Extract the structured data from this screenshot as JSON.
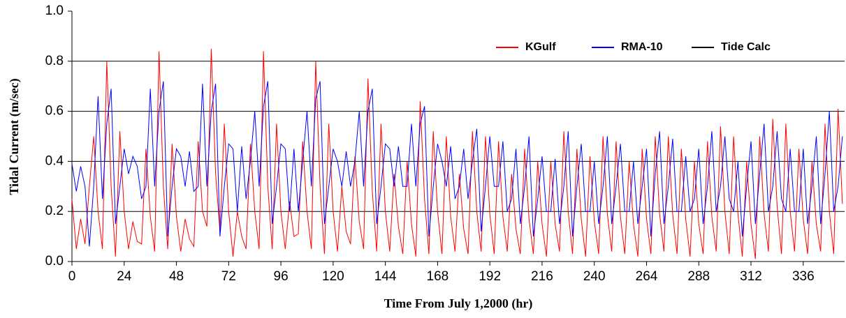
{
  "chart_data": {
    "type": "line",
    "y_label": "Tidal Current (m/sec)",
    "x_label": "Time From July 1,2000 (hr)",
    "xlim": [
      0,
      355
    ],
    "xticks": [
      0,
      24,
      48,
      72,
      96,
      120,
      144,
      168,
      192,
      216,
      240,
      264,
      288,
      312,
      336
    ],
    "ylim": [
      0,
      1
    ],
    "yticks": [
      {
        "value": 0,
        "label": "0.0"
      },
      {
        "value": 0.2,
        "label": "0.2"
      },
      {
        "value": 0.4,
        "label": "0.4"
      },
      {
        "value": 0.6,
        "label": "0.6"
      },
      {
        "value": 0.8,
        "label": "0.8"
      },
      {
        "value": 1,
        "label": "1.0"
      }
    ],
    "grid": true,
    "legend": "upper right",
    "x": [
      0,
      2,
      4,
      6,
      8,
      10,
      12,
      14,
      16,
      18,
      20,
      22,
      24,
      26,
      28,
      30,
      32,
      34,
      36,
      38,
      40,
      42,
      44,
      46,
      48,
      50,
      52,
      54,
      56,
      58,
      60,
      62,
      64,
      66,
      68,
      70,
      72,
      74,
      76,
      78,
      80,
      82,
      84,
      86,
      88,
      90,
      92,
      94,
      96,
      98,
      100,
      102,
      104,
      106,
      108,
      110,
      112,
      114,
      116,
      118,
      120,
      122,
      124,
      126,
      128,
      130,
      132,
      134,
      136,
      138,
      140,
      142,
      144,
      146,
      148,
      150,
      152,
      154,
      156,
      158,
      160,
      162,
      164,
      166,
      168,
      170,
      172,
      174,
      176,
      178,
      180,
      182,
      184,
      186,
      188,
      190,
      192,
      194,
      196,
      198,
      200,
      202,
      204,
      206,
      208,
      210,
      212,
      214,
      216,
      218,
      220,
      222,
      224,
      226,
      228,
      230,
      232,
      234,
      236,
      238,
      240,
      242,
      244,
      246,
      248,
      250,
      252,
      254,
      256,
      258,
      260,
      262,
      264,
      266,
      268,
      270,
      272,
      274,
      276,
      278,
      280,
      282,
      284,
      286,
      288,
      290,
      292,
      294,
      296,
      298,
      300,
      302,
      304,
      306,
      308,
      310,
      312,
      314,
      316,
      318,
      320,
      322,
      324,
      326,
      328,
      330,
      332,
      334,
      336,
      338,
      340,
      342,
      344,
      346,
      348,
      350,
      352,
      354
    ],
    "series": [
      {
        "name": "KGulf",
        "color": "#ff0000",
        "values": [
          0.25,
          0.05,
          0.17,
          0.07,
          0.3,
          0.5,
          0.2,
          0.05,
          0.8,
          0.3,
          0.02,
          0.52,
          0.2,
          0.05,
          0.16,
          0.08,
          0.07,
          0.45,
          0.18,
          0.04,
          0.84,
          0.3,
          0.05,
          0.47,
          0.18,
          0.04,
          0.17,
          0.09,
          0.06,
          0.48,
          0.2,
          0.14,
          0.85,
          0.35,
          0.12,
          0.55,
          0.2,
          0.02,
          0.2,
          0.1,
          0.05,
          0.47,
          0.2,
          0.05,
          0.84,
          0.3,
          0.05,
          0.55,
          0.2,
          0.05,
          0.24,
          0.1,
          0.11,
          0.48,
          0.2,
          0.05,
          0.8,
          0.3,
          0.03,
          0.55,
          0.2,
          0.04,
          0.3,
          0.12,
          0.07,
          0.42,
          0.16,
          0.05,
          0.73,
          0.28,
          0.04,
          0.55,
          0.2,
          0.04,
          0.35,
          0.14,
          0.03,
          0.4,
          0.15,
          0.02,
          0.64,
          0.25,
          0.03,
          0.52,
          0.2,
          0.03,
          0.5,
          0.18,
          0.04,
          0.35,
          0.13,
          0.03,
          0.52,
          0.2,
          0.04,
          0.5,
          0.19,
          0.03,
          0.48,
          0.18,
          0.04,
          0.35,
          0.13,
          0.03,
          0.45,
          0.17,
          0.03,
          0.4,
          0.15,
          0.02,
          0.4,
          0.15,
          0.04,
          0.52,
          0.2,
          0.03,
          0.45,
          0.17,
          0.02,
          0.42,
          0.16,
          0.03,
          0.5,
          0.19,
          0.04,
          0.48,
          0.18,
          0.03,
          0.4,
          0.15,
          0.02,
          0.45,
          0.17,
          0.03,
          0.5,
          0.19,
          0.04,
          0.5,
          0.19,
          0.03,
          0.45,
          0.17,
          0.02,
          0.4,
          0.15,
          0.03,
          0.48,
          0.18,
          0.04,
          0.54,
          0.2,
          0.03,
          0.5,
          0.19,
          0.02,
          0.4,
          0.15,
          0.01,
          0.5,
          0.19,
          0.04,
          0.57,
          0.22,
          0.03,
          0.55,
          0.2,
          0.04,
          0.45,
          0.17,
          0.03,
          0.4,
          0.15,
          0.04,
          0.55,
          0.2,
          0.03,
          0.61,
          0.23
        ]
      },
      {
        "name": "RMA-10",
        "color": "#0000ff",
        "values": [
          0.39,
          0.28,
          0.38,
          0.3,
          0.06,
          0.3,
          0.66,
          0.25,
          0.55,
          0.69,
          0.15,
          0.3,
          0.45,
          0.35,
          0.42,
          0.38,
          0.25,
          0.3,
          0.69,
          0.3,
          0.6,
          0.72,
          0.1,
          0.3,
          0.45,
          0.42,
          0.3,
          0.44,
          0.28,
          0.3,
          0.71,
          0.3,
          0.6,
          0.71,
          0.1,
          0.3,
          0.47,
          0.45,
          0.2,
          0.46,
          0.25,
          0.4,
          0.6,
          0.3,
          0.62,
          0.72,
          0.15,
          0.3,
          0.47,
          0.45,
          0.2,
          0.45,
          0.2,
          0.4,
          0.6,
          0.3,
          0.65,
          0.72,
          0.15,
          0.3,
          0.45,
          0.4,
          0.3,
          0.44,
          0.3,
          0.4,
          0.6,
          0.3,
          0.6,
          0.69,
          0.15,
          0.3,
          0.47,
          0.45,
          0.3,
          0.46,
          0.3,
          0.3,
          0.55,
          0.3,
          0.55,
          0.62,
          0.1,
          0.3,
          0.47,
          0.4,
          0.3,
          0.46,
          0.25,
          0.3,
          0.45,
          0.25,
          0.4,
          0.53,
          0.12,
          0.3,
          0.5,
          0.3,
          0.3,
          0.48,
          0.2,
          0.25,
          0.45,
          0.15,
          0.3,
          0.5,
          0.1,
          0.25,
          0.42,
          0.2,
          0.2,
          0.41,
          0.15,
          0.3,
          0.52,
          0.1,
          0.3,
          0.47,
          0.2,
          0.2,
          0.4,
          0.15,
          0.3,
          0.5,
          0.15,
          0.3,
          0.47,
          0.2,
          0.2,
          0.4,
          0.15,
          0.3,
          0.45,
          0.1,
          0.35,
          0.52,
          0.15,
          0.3,
          0.49,
          0.2,
          0.2,
          0.42,
          0.2,
          0.25,
          0.45,
          0.15,
          0.3,
          0.52,
          0.2,
          0.3,
          0.5,
          0.25,
          0.2,
          0.4,
          0.1,
          0.3,
          0.48,
          0.15,
          0.35,
          0.55,
          0.2,
          0.3,
          0.52,
          0.25,
          0.2,
          0.45,
          0.2,
          0.2,
          0.45,
          0.15,
          0.3,
          0.5,
          0.15,
          0.35,
          0.6,
          0.2,
          0.3,
          0.5
        ]
      },
      {
        "name": "Tide Calc",
        "color": "#000000",
        "values": [
          null,
          null,
          null,
          null,
          null,
          null,
          null,
          null,
          null,
          null,
          null,
          null,
          null,
          null,
          null,
          null,
          null,
          null,
          null,
          null,
          null,
          null,
          null,
          null,
          null,
          null,
          null,
          null,
          null,
          null,
          null,
          null,
          null,
          null,
          null,
          null,
          null,
          null,
          null,
          null,
          null,
          null,
          null,
          null,
          null,
          null,
          null,
          null,
          null,
          null,
          null,
          null,
          null,
          null,
          null,
          null,
          null,
          null,
          null,
          null,
          null,
          null,
          null,
          null,
          null,
          null,
          null,
          null,
          null,
          null,
          null,
          null,
          null,
          null,
          null,
          null,
          null,
          null,
          null,
          null,
          null,
          null,
          null,
          null,
          null,
          null,
          null,
          null,
          null,
          null,
          null,
          null,
          null,
          null,
          null,
          null,
          null,
          null,
          null,
          null,
          null,
          null,
          null,
          null,
          null,
          null,
          null,
          null,
          null,
          null,
          null,
          null,
          null,
          null,
          null,
          null,
          null,
          null,
          null,
          null,
          null,
          null,
          null,
          null,
          null,
          null,
          null,
          null,
          null,
          null,
          null,
          null,
          null,
          null,
          null,
          null,
          null,
          null,
          null,
          null,
          null,
          null,
          null,
          null,
          null,
          null,
          null,
          null,
          null,
          null,
          null,
          null,
          null,
          null,
          null,
          null,
          null,
          null,
          null,
          null,
          null,
          null,
          null,
          null,
          null,
          null,
          null,
          null,
          null,
          null,
          null,
          null,
          null,
          null,
          null,
          null,
          null,
          null
        ]
      }
    ]
  }
}
